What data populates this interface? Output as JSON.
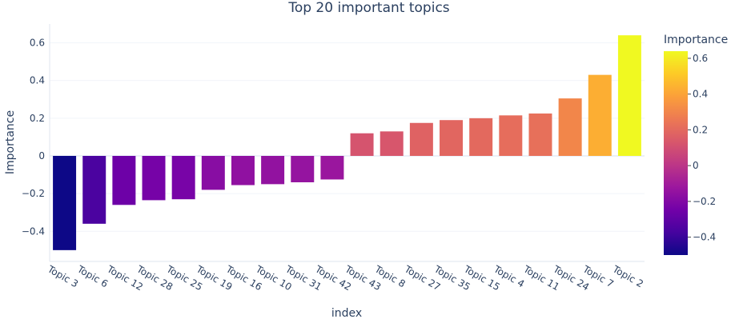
{
  "chart_data": {
    "type": "bar",
    "title": "Top 20 important topics",
    "xlabel": "index",
    "ylabel": "Importance",
    "categories": [
      "Topic 3",
      "Topic 6",
      "Topic 12",
      "Topic 28",
      "Topic 25",
      "Topic 19",
      "Topic 16",
      "Topic 10",
      "Topic 31",
      "Topic 42",
      "Topic 43",
      "Topic 8",
      "Topic 27",
      "Topic 35",
      "Topic 15",
      "Topic 4",
      "Topic 11",
      "Topic 24",
      "Topic 7",
      "Topic 2"
    ],
    "values": [
      -0.5,
      -0.36,
      -0.26,
      -0.235,
      -0.23,
      -0.18,
      -0.155,
      -0.15,
      -0.14,
      -0.125,
      0.12,
      0.13,
      0.175,
      0.19,
      0.2,
      0.215,
      0.225,
      0.305,
      0.43,
      0.64
    ],
    "ylim": [
      -0.56,
      0.7
    ],
    "yticks": [
      -0.4,
      -0.2,
      0,
      0.2,
      0.4,
      0.6
    ],
    "ytick_labels": [
      "−0.4",
      "−0.2",
      "0",
      "0.2",
      "0.4",
      "0.6"
    ],
    "grid": true,
    "legend": "none",
    "colorscale": "plasma",
    "colorbar": {
      "title": "Importance",
      "range": [
        -0.5,
        0.64
      ],
      "ticks": [
        -0.4,
        -0.2,
        0,
        0.2,
        0.4,
        0.6
      ],
      "tick_labels": [
        "−0.4",
        "−0.2",
        "0",
        "0.2",
        "0.4",
        "0.6"
      ]
    }
  }
}
